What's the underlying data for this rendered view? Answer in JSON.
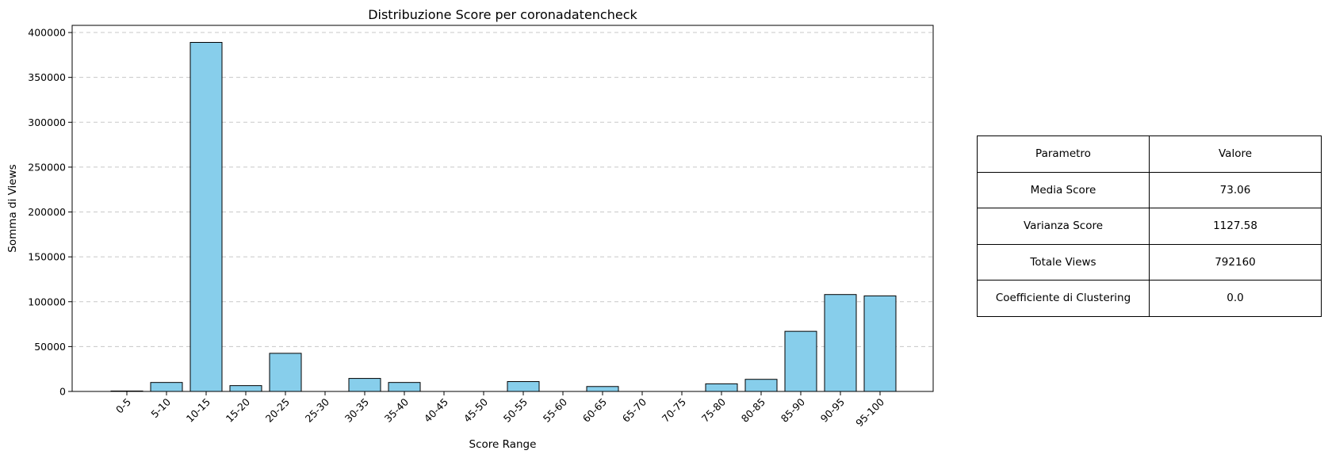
{
  "chart_data": {
    "type": "bar",
    "title": "Distribuzione Score per coronadatencheck",
    "xlabel": "Score Range",
    "ylabel": "Somma di Views",
    "categories": [
      "0-5",
      "5-10",
      "10-15",
      "15-20",
      "20-25",
      "25-30",
      "30-35",
      "35-40",
      "40-45",
      "45-50",
      "50-55",
      "55-60",
      "60-65",
      "65-70",
      "70-75",
      "75-80",
      "80-85",
      "85-90",
      "90-95",
      "95-100"
    ],
    "values": [
      500,
      10000,
      389000,
      6500,
      42500,
      0,
      14500,
      10000,
      0,
      0,
      11000,
      0,
      5500,
      0,
      0,
      8500,
      13500,
      67000,
      108000,
      106500
    ],
    "ylim": [
      0,
      408000
    ],
    "yticks": [
      0,
      50000,
      100000,
      150000,
      200000,
      250000,
      300000,
      350000,
      400000
    ],
    "grid": "y-dashed",
    "bar_color": "#87CEEB",
    "edge_color": "#000000"
  },
  "table": {
    "header": [
      "Parametro",
      "Valore"
    ],
    "rows": [
      [
        "Media Score",
        "73.06"
      ],
      [
        "Varianza Score",
        "1127.58"
      ],
      [
        "Totale Views",
        "792160"
      ],
      [
        "Coefficiente di Clustering",
        "0.0"
      ]
    ]
  }
}
